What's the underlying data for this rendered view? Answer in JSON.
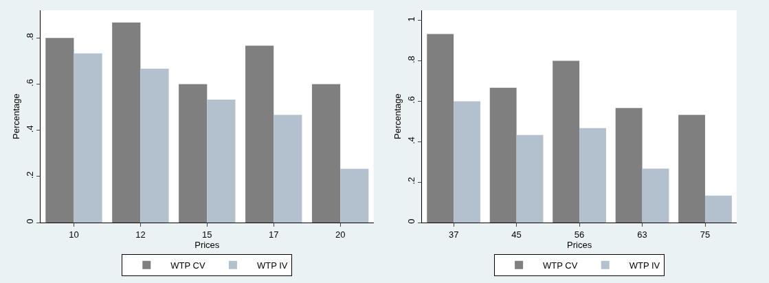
{
  "chart_data": [
    {
      "type": "bar",
      "xlabel": "Prices",
      "ylabel": "Percentage",
      "categories": [
        "10",
        "12",
        "15",
        "17",
        "20"
      ],
      "series": [
        {
          "name": "WTP CV",
          "color": "#7f7f7f",
          "values": [
            0.8,
            0.867,
            0.6,
            0.767,
            0.6
          ]
        },
        {
          "name": "WTP IV",
          "color": "#b3c1cf",
          "values": [
            0.733,
            0.667,
            0.533,
            0.467,
            0.233
          ]
        }
      ],
      "ylim": [
        0,
        0.92
      ],
      "yticks": [
        {
          "value": 0,
          "label": "0"
        },
        {
          "value": 0.2,
          "label": ".2"
        },
        {
          "value": 0.4,
          "label": ".4"
        },
        {
          "value": 0.6,
          "label": ".6"
        },
        {
          "value": 0.8,
          "label": ".8"
        }
      ],
      "grid": false,
      "legend": "bottom"
    },
    {
      "type": "bar",
      "xlabel": "Prices",
      "ylabel": "Percentage",
      "categories": [
        "37",
        "45",
        "56",
        "63",
        "75"
      ],
      "series": [
        {
          "name": "WTP CV",
          "color": "#7f7f7f",
          "values": [
            0.933,
            0.667,
            0.8,
            0.567,
            0.533
          ]
        },
        {
          "name": "WTP IV",
          "color": "#b3c1cf",
          "values": [
            0.6,
            0.433,
            0.467,
            0.267,
            0.133
          ]
        }
      ],
      "ylim": [
        0,
        1.05
      ],
      "yticks": [
        {
          "value": 0,
          "label": "0"
        },
        {
          "value": 0.2,
          "label": ".2"
        },
        {
          "value": 0.4,
          "label": ".4"
        },
        {
          "value": 0.6,
          "label": ".6"
        },
        {
          "value": 0.8,
          "label": ".8"
        },
        {
          "value": 1,
          "label": "1"
        }
      ],
      "grid": false,
      "legend": "bottom"
    }
  ]
}
